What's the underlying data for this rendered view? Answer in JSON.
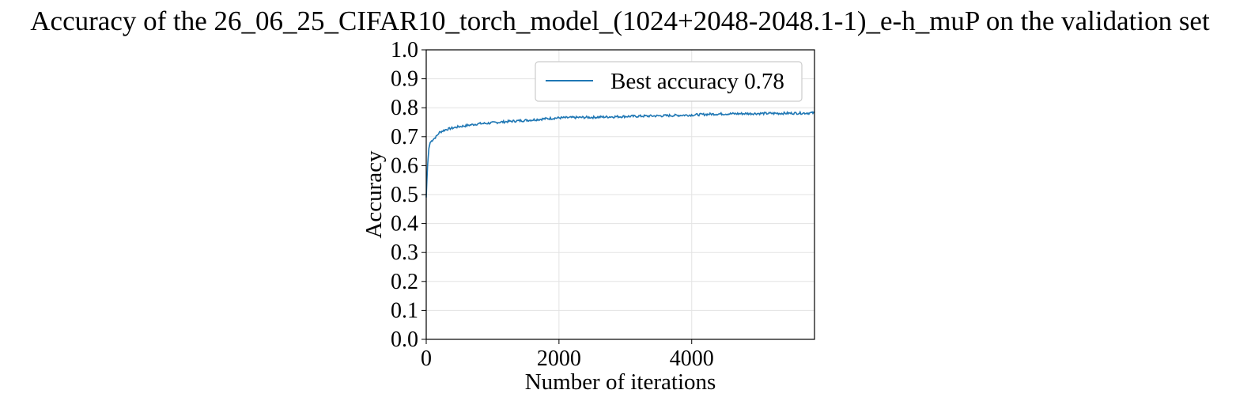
{
  "chart_data": {
    "type": "line",
    "title": "Accuracy of the 26_06_25_CIFAR10_torch_model_(1024+2048-2048.1-1)_e-h_muP on the validation set",
    "xlabel": "Number of iterations",
    "ylabel": "Accuracy",
    "xlim": [
      0,
      5850
    ],
    "ylim": [
      0,
      1.0
    ],
    "x_ticks": [
      0,
      2000,
      4000
    ],
    "y_ticks": [
      0.0,
      0.1,
      0.2,
      0.3,
      0.4,
      0.5,
      0.6,
      0.7,
      0.8,
      0.9,
      1.0
    ],
    "y_tick_labels": [
      "0.0",
      "0.1",
      "0.2",
      "0.3",
      "0.4",
      "0.5",
      "0.6",
      "0.7",
      "0.8",
      "0.9",
      "1.0"
    ],
    "x_tick_labels": [
      "0",
      "2000",
      "4000"
    ],
    "grid": true,
    "legend_position": "top-right",
    "series": [
      {
        "name": "Best accuracy 0.78",
        "color": "#1f77b4",
        "x": [
          0,
          20,
          40,
          60,
          80,
          100,
          150,
          200,
          250,
          300,
          400,
          500,
          600,
          700,
          800,
          900,
          1000,
          1200,
          1400,
          1600,
          1800,
          2000,
          2200,
          2500,
          3000,
          3500,
          4000,
          4300,
          4500,
          5000,
          5500,
          5850
        ],
        "y": [
          0.49,
          0.6,
          0.66,
          0.68,
          0.685,
          0.69,
          0.7,
          0.715,
          0.72,
          0.725,
          0.73,
          0.735,
          0.738,
          0.742,
          0.745,
          0.746,
          0.748,
          0.752,
          0.755,
          0.758,
          0.762,
          0.765,
          0.766,
          0.767,
          0.77,
          0.772,
          0.775,
          0.778,
          0.779,
          0.78,
          0.781,
          0.782
        ]
      }
    ]
  }
}
